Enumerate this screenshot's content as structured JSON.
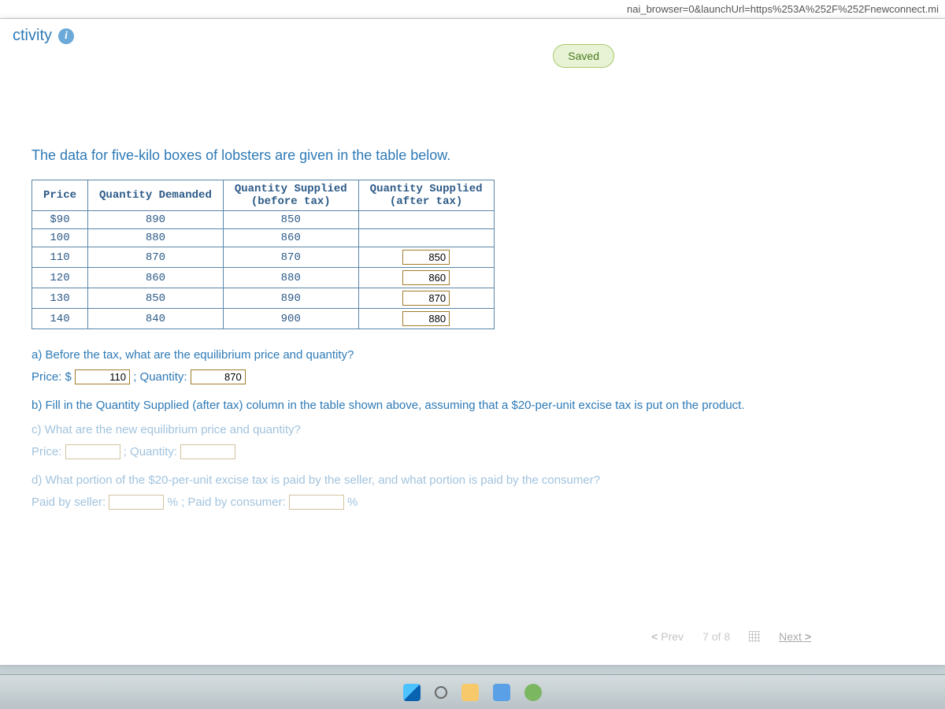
{
  "url_fragment": "nai_browser=0&launchUrl=https%253A%252F%252Fnewconnect.mi",
  "header": {
    "activity": "ctivity",
    "saved": "Saved"
  },
  "intro": "The data for five-kilo boxes of lobsters are given in the table below.",
  "table": {
    "headers": [
      "Price",
      "Quantity Demanded",
      "Quantity Supplied (before tax)",
      "Quantity Supplied (after tax)"
    ],
    "rows": [
      {
        "price": "$90",
        "qd": "890",
        "qs_before": "850",
        "qs_after": ""
      },
      {
        "price": "100",
        "qd": "880",
        "qs_before": "860",
        "qs_after": ""
      },
      {
        "price": "110",
        "qd": "870",
        "qs_before": "870",
        "qs_after": "850"
      },
      {
        "price": "120",
        "qd": "860",
        "qs_before": "880",
        "qs_after": "860"
      },
      {
        "price": "130",
        "qd": "850",
        "qs_before": "890",
        "qs_after": "870"
      },
      {
        "price": "140",
        "qd": "840",
        "qs_before": "900",
        "qs_after": "880"
      }
    ]
  },
  "qa": {
    "q_a": "a) Before the tax, what are the equilibrium price and quantity?",
    "price_label": "Price: $",
    "price_val": "110",
    "qty_label": "; Quantity:",
    "qty_val": "870",
    "q_b": "b) Fill in the Quantity Supplied (after tax) column in the table shown above, assuming that a $20-per-unit excise tax is put on the product.",
    "q_c": "c) What are the new equilibrium price and quantity?",
    "c_price_label": "Price:",
    "c_qty_label": "; Quantity:",
    "q_d": "d) What portion of the $20-per-unit excise tax is paid by the seller, and what portion is paid by the consumer?",
    "d_seller": "Paid by seller:",
    "d_pct1": "% ; Paid by consumer:",
    "d_pct2": "%"
  },
  "nav": {
    "prev": "Prev",
    "pos": "7 of 8",
    "next": "Next"
  }
}
